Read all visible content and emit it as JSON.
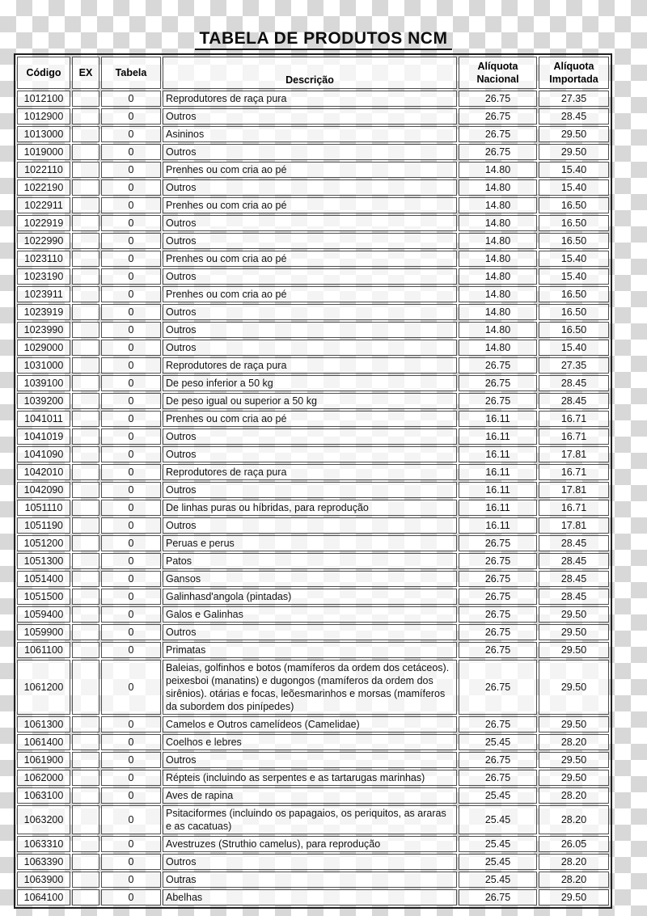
{
  "title": "TABELA DE PRODUTOS NCM",
  "colors": {
    "checker_gray": "#d8d8d8",
    "table_outer_border": "#1f1f1f",
    "cell_border": "#4f4f4f",
    "text": "#111111"
  },
  "table": {
    "columns": [
      "Código",
      "EX",
      "Tabela",
      "Descrição",
      "Alíquota Nacional",
      "Alíquota Importada"
    ],
    "rows": [
      [
        "1012100",
        "",
        "0",
        "Reprodutores de raça pura",
        "26.75",
        "27.35"
      ],
      [
        "1012900",
        "",
        "0",
        "Outros",
        "26.75",
        "28.45"
      ],
      [
        "1013000",
        "",
        "0",
        "Asininos",
        "26.75",
        "29.50"
      ],
      [
        "1019000",
        "",
        "0",
        "Outros",
        "26.75",
        "29.50"
      ],
      [
        "1022110",
        "",
        "0",
        "Prenhes ou com cria ao pé",
        "14.80",
        "15.40"
      ],
      [
        "1022190",
        "",
        "0",
        "Outros",
        "14.80",
        "15.40"
      ],
      [
        "1022911",
        "",
        "0",
        "Prenhes ou com cria ao pé",
        "14.80",
        "16.50"
      ],
      [
        "1022919",
        "",
        "0",
        "Outros",
        "14.80",
        "16.50"
      ],
      [
        "1022990",
        "",
        "0",
        "Outros",
        "14.80",
        "16.50"
      ],
      [
        "1023110",
        "",
        "0",
        "Prenhes ou com cria ao pé",
        "14.80",
        "15.40"
      ],
      [
        "1023190",
        "",
        "0",
        "Outros",
        "14.80",
        "15.40"
      ],
      [
        "1023911",
        "",
        "0",
        "Prenhes ou com cria ao pé",
        "14.80",
        "16.50"
      ],
      [
        "1023919",
        "",
        "0",
        "Outros",
        "14.80",
        "16.50"
      ],
      [
        "1023990",
        "",
        "0",
        "Outros",
        "14.80",
        "16.50"
      ],
      [
        "1029000",
        "",
        "0",
        "Outros",
        "14.80",
        "15.40"
      ],
      [
        "1031000",
        "",
        "0",
        "Reprodutores de raça pura",
        "26.75",
        "27.35"
      ],
      [
        "1039100",
        "",
        "0",
        "De peso inferior a 50 kg",
        "26.75",
        "28.45"
      ],
      [
        "1039200",
        "",
        "0",
        "De peso igual ou superior a 50 kg",
        "26.75",
        "28.45"
      ],
      [
        "1041011",
        "",
        "0",
        "Prenhes ou com cria ao pé",
        "16.11",
        "16.71"
      ],
      [
        "1041019",
        "",
        "0",
        "Outros",
        "16.11",
        "16.71"
      ],
      [
        "1041090",
        "",
        "0",
        "Outros",
        "16.11",
        "17.81"
      ],
      [
        "1042010",
        "",
        "0",
        "Reprodutores de raça pura",
        "16.11",
        "16.71"
      ],
      [
        "1042090",
        "",
        "0",
        "Outros",
        "16.11",
        "17.81"
      ],
      [
        "1051110",
        "",
        "0",
        "De linhas puras ou híbridas, para reprodução",
        "16.11",
        "16.71"
      ],
      [
        "1051190",
        "",
        "0",
        "Outros",
        "16.11",
        "17.81"
      ],
      [
        "1051200",
        "",
        "0",
        "Peruas e perus",
        "26.75",
        "28.45"
      ],
      [
        "1051300",
        "",
        "0",
        "Patos",
        "26.75",
        "28.45"
      ],
      [
        "1051400",
        "",
        "0",
        "Gansos",
        "26.75",
        "28.45"
      ],
      [
        "1051500",
        "",
        "0",
        "Galinhasd'angola (pintadas)",
        "26.75",
        "28.45"
      ],
      [
        "1059400",
        "",
        "0",
        "Galos e Galinhas",
        "26.75",
        "29.50"
      ],
      [
        "1059900",
        "",
        "0",
        "Outros",
        "26.75",
        "29.50"
      ],
      [
        "1061100",
        "",
        "0",
        "Primatas",
        "26.75",
        "29.50"
      ],
      [
        "1061200",
        "",
        "0",
        "Baleias, golfinhos e botos (mamíferos da ordem dos cetáceos). peixesboi (manatins) e dugongos (mamíferos da ordem dos sirênios). otárias e focas, leõesmarinhos e morsas (mamíferos da subordem dos pinípedes)",
        "26.75",
        "29.50"
      ],
      [
        "1061300",
        "",
        "0",
        "Camelos e Outros camelídeos (Camelidae)",
        "26.75",
        "29.50"
      ],
      [
        "1061400",
        "",
        "0",
        "Coelhos e lebres",
        "25.45",
        "28.20"
      ],
      [
        "1061900",
        "",
        "0",
        "Outros",
        "26.75",
        "29.50"
      ],
      [
        "1062000",
        "",
        "0",
        "Répteis (incluindo as serpentes e as tartarugas marinhas)",
        "26.75",
        "29.50"
      ],
      [
        "1063100",
        "",
        "0",
        "Aves de rapina",
        "25.45",
        "28.20"
      ],
      [
        "1063200",
        "",
        "0",
        "Psitaciformes (incluindo os papagaios, os periquitos, as araras e as cacatuas)",
        "25.45",
        "28.20"
      ],
      [
        "1063310",
        "",
        "0",
        "Avestruzes (Struthio camelus), para reprodução",
        "25.45",
        "26.05"
      ],
      [
        "1063390",
        "",
        "0",
        "Outros",
        "25.45",
        "28.20"
      ],
      [
        "1063900",
        "",
        "0",
        "Outras",
        "25.45",
        "28.20"
      ],
      [
        "1064100",
        "",
        "0",
        "Abelhas",
        "26.75",
        "29.50"
      ]
    ]
  }
}
